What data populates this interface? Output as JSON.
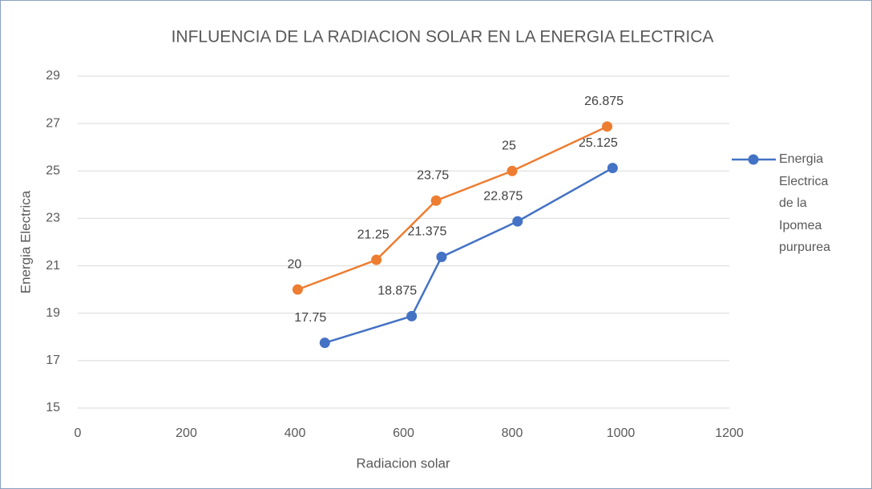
{
  "chart_data": {
    "type": "line",
    "title": "INFLUENCIA DE LA RADIACION SOLAR EN LA ENERGIA ELECTRICA",
    "x_label": "Radiacion solar",
    "y_label": "Energia Electrica",
    "series": [
      {
        "name": "Energia Electrica de la Ipomea purpurea",
        "color": "#4472c4",
        "x": [
          455,
          615,
          670,
          810,
          985
        ],
        "values": [
          17.75,
          18.875,
          21.375,
          22.875,
          25.125
        ]
      },
      {
        "color": "#ed7d31",
        "x": [
          405,
          550,
          660,
          800,
          975
        ],
        "values": [
          20,
          21.25,
          23.75,
          25,
          26.875
        ]
      }
    ],
    "xlim": [
      0,
      1200
    ],
    "xticks": [
      0,
      200,
      400,
      600,
      800,
      1000,
      1200
    ],
    "ylim": [
      15,
      29
    ],
    "yticks": [
      15,
      17,
      19,
      21,
      23,
      25,
      27,
      29
    ],
    "grid": true,
    "legend": "right"
  }
}
